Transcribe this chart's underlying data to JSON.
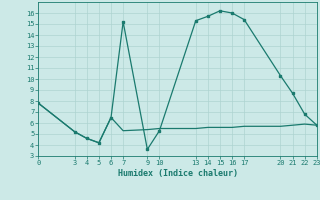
{
  "xlabel": "Humidex (Indice chaleur)",
  "line1_x": [
    0,
    3,
    4,
    5,
    6,
    7,
    9,
    10,
    13,
    14,
    15,
    16,
    17,
    20,
    21,
    22,
    23
  ],
  "line1_y": [
    7.8,
    5.2,
    4.6,
    4.2,
    6.5,
    15.2,
    3.6,
    5.3,
    15.3,
    15.7,
    16.2,
    16.0,
    15.4,
    10.3,
    8.7,
    6.8,
    5.8
  ],
  "line2_x": [
    0,
    3,
    4,
    5,
    6,
    7,
    9,
    10,
    13,
    14,
    15,
    16,
    17,
    20,
    21,
    22,
    23
  ],
  "line2_y": [
    7.8,
    5.2,
    4.6,
    4.2,
    6.5,
    5.3,
    5.4,
    5.5,
    5.5,
    5.6,
    5.6,
    5.6,
    5.7,
    5.7,
    5.8,
    5.9,
    5.8
  ],
  "line_color": "#1a7a6e",
  "bg_color": "#cce9e7",
  "grid_color": "#aed4d1",
  "ylim": [
    3,
    17
  ],
  "xlim": [
    0,
    23
  ],
  "yticks": [
    3,
    4,
    5,
    6,
    7,
    8,
    9,
    10,
    11,
    12,
    13,
    14,
    15,
    16
  ],
  "xticks": [
    0,
    3,
    4,
    5,
    6,
    7,
    9,
    10,
    13,
    14,
    15,
    16,
    17,
    20,
    21,
    22,
    23
  ]
}
